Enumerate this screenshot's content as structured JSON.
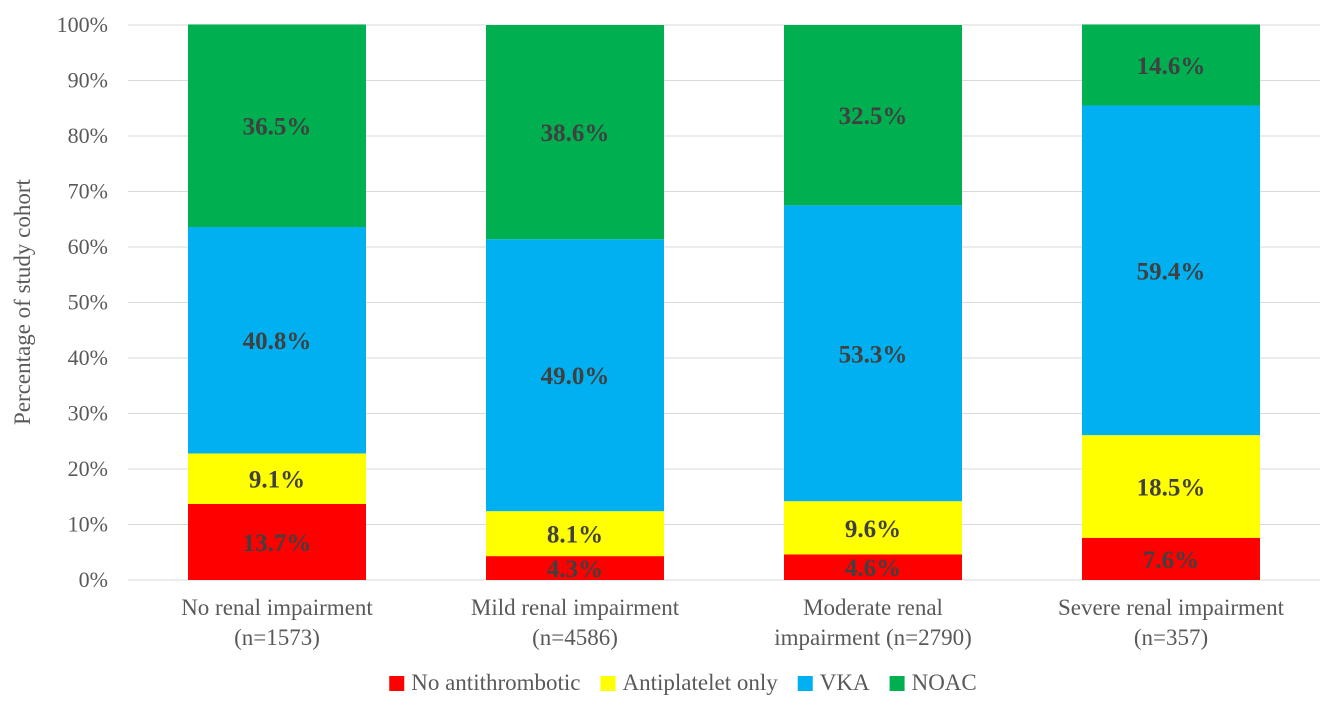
{
  "chart_data": {
    "type": "bar",
    "stacked": true,
    "percent_stacked": true,
    "title": "",
    "xlabel": "",
    "ylabel": "Percentage of study cohort",
    "ylim": [
      0,
      100
    ],
    "yticks": [
      "0%",
      "10%",
      "20%",
      "30%",
      "40%",
      "50%",
      "60%",
      "70%",
      "80%",
      "90%",
      "100%"
    ],
    "grid": true,
    "legend_position": "bottom",
    "categories": [
      [
        "No renal impairment",
        "(n=1573)"
      ],
      [
        "Mild renal impairment",
        "(n=4586)"
      ],
      [
        "Moderate renal",
        "impairment (n=2790)"
      ],
      [
        "Severe renal impairment",
        "(n=357)"
      ]
    ],
    "series": [
      {
        "name": "No antithrombotic",
        "color": "#ff0000",
        "values": [
          13.7,
          4.3,
          4.6,
          7.6
        ],
        "labels": [
          "13.7%",
          "4.3%",
          "4.6%",
          "7.6%"
        ]
      },
      {
        "name": "Antiplatelet only",
        "color": "#ffff00",
        "values": [
          9.1,
          8.1,
          9.6,
          18.5
        ],
        "labels": [
          "9.1%",
          "8.1%",
          "9.6%",
          "18.5%"
        ]
      },
      {
        "name": "VKA",
        "color": "#00b0f0",
        "values": [
          40.8,
          49.0,
          53.3,
          59.4
        ],
        "labels": [
          "40.8%",
          "49.0%",
          "53.3%",
          "59.4%"
        ]
      },
      {
        "name": "NOAC",
        "color": "#00b050",
        "values": [
          36.5,
          38.6,
          32.5,
          14.6
        ],
        "labels": [
          "36.5%",
          "38.6%",
          "32.5%",
          "14.6%"
        ]
      }
    ]
  }
}
